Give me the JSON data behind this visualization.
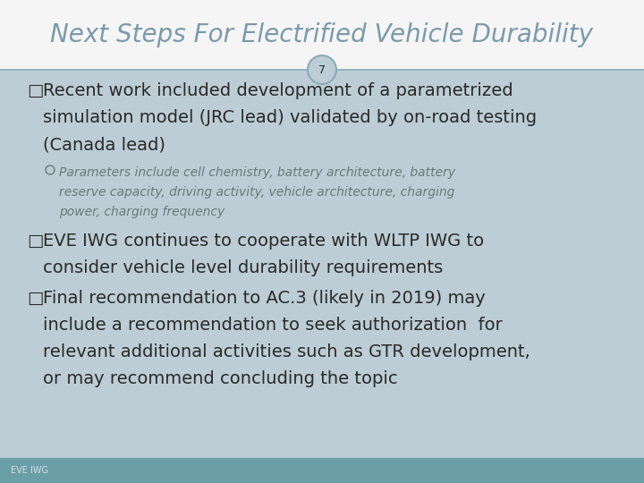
{
  "title": "Next Steps For Electrified Vehicle Durability",
  "slide_number": "7",
  "bg_color": "#bccdd5",
  "title_bg_color": "#f5f5f5",
  "title_color": "#7a9aaa",
  "separator_color": "#8aabb8",
  "footer_bg_color": "#6b9fa8",
  "footer_text": "EVE IWG",
  "footer_text_color": "#d0e0e4",
  "bullet_color": "#2a2a2a",
  "subbullet_color": "#6a7a7a",
  "circle_bg": "#bccdd5",
  "circle_border": "#8aabb8",
  "circle_text_color": "#2a2a2a",
  "title_fontsize": 20,
  "bullet_fontsize": 14,
  "subbullet_fontsize": 10,
  "footer_fontsize": 7,
  "slide_num_fontsize": 9
}
